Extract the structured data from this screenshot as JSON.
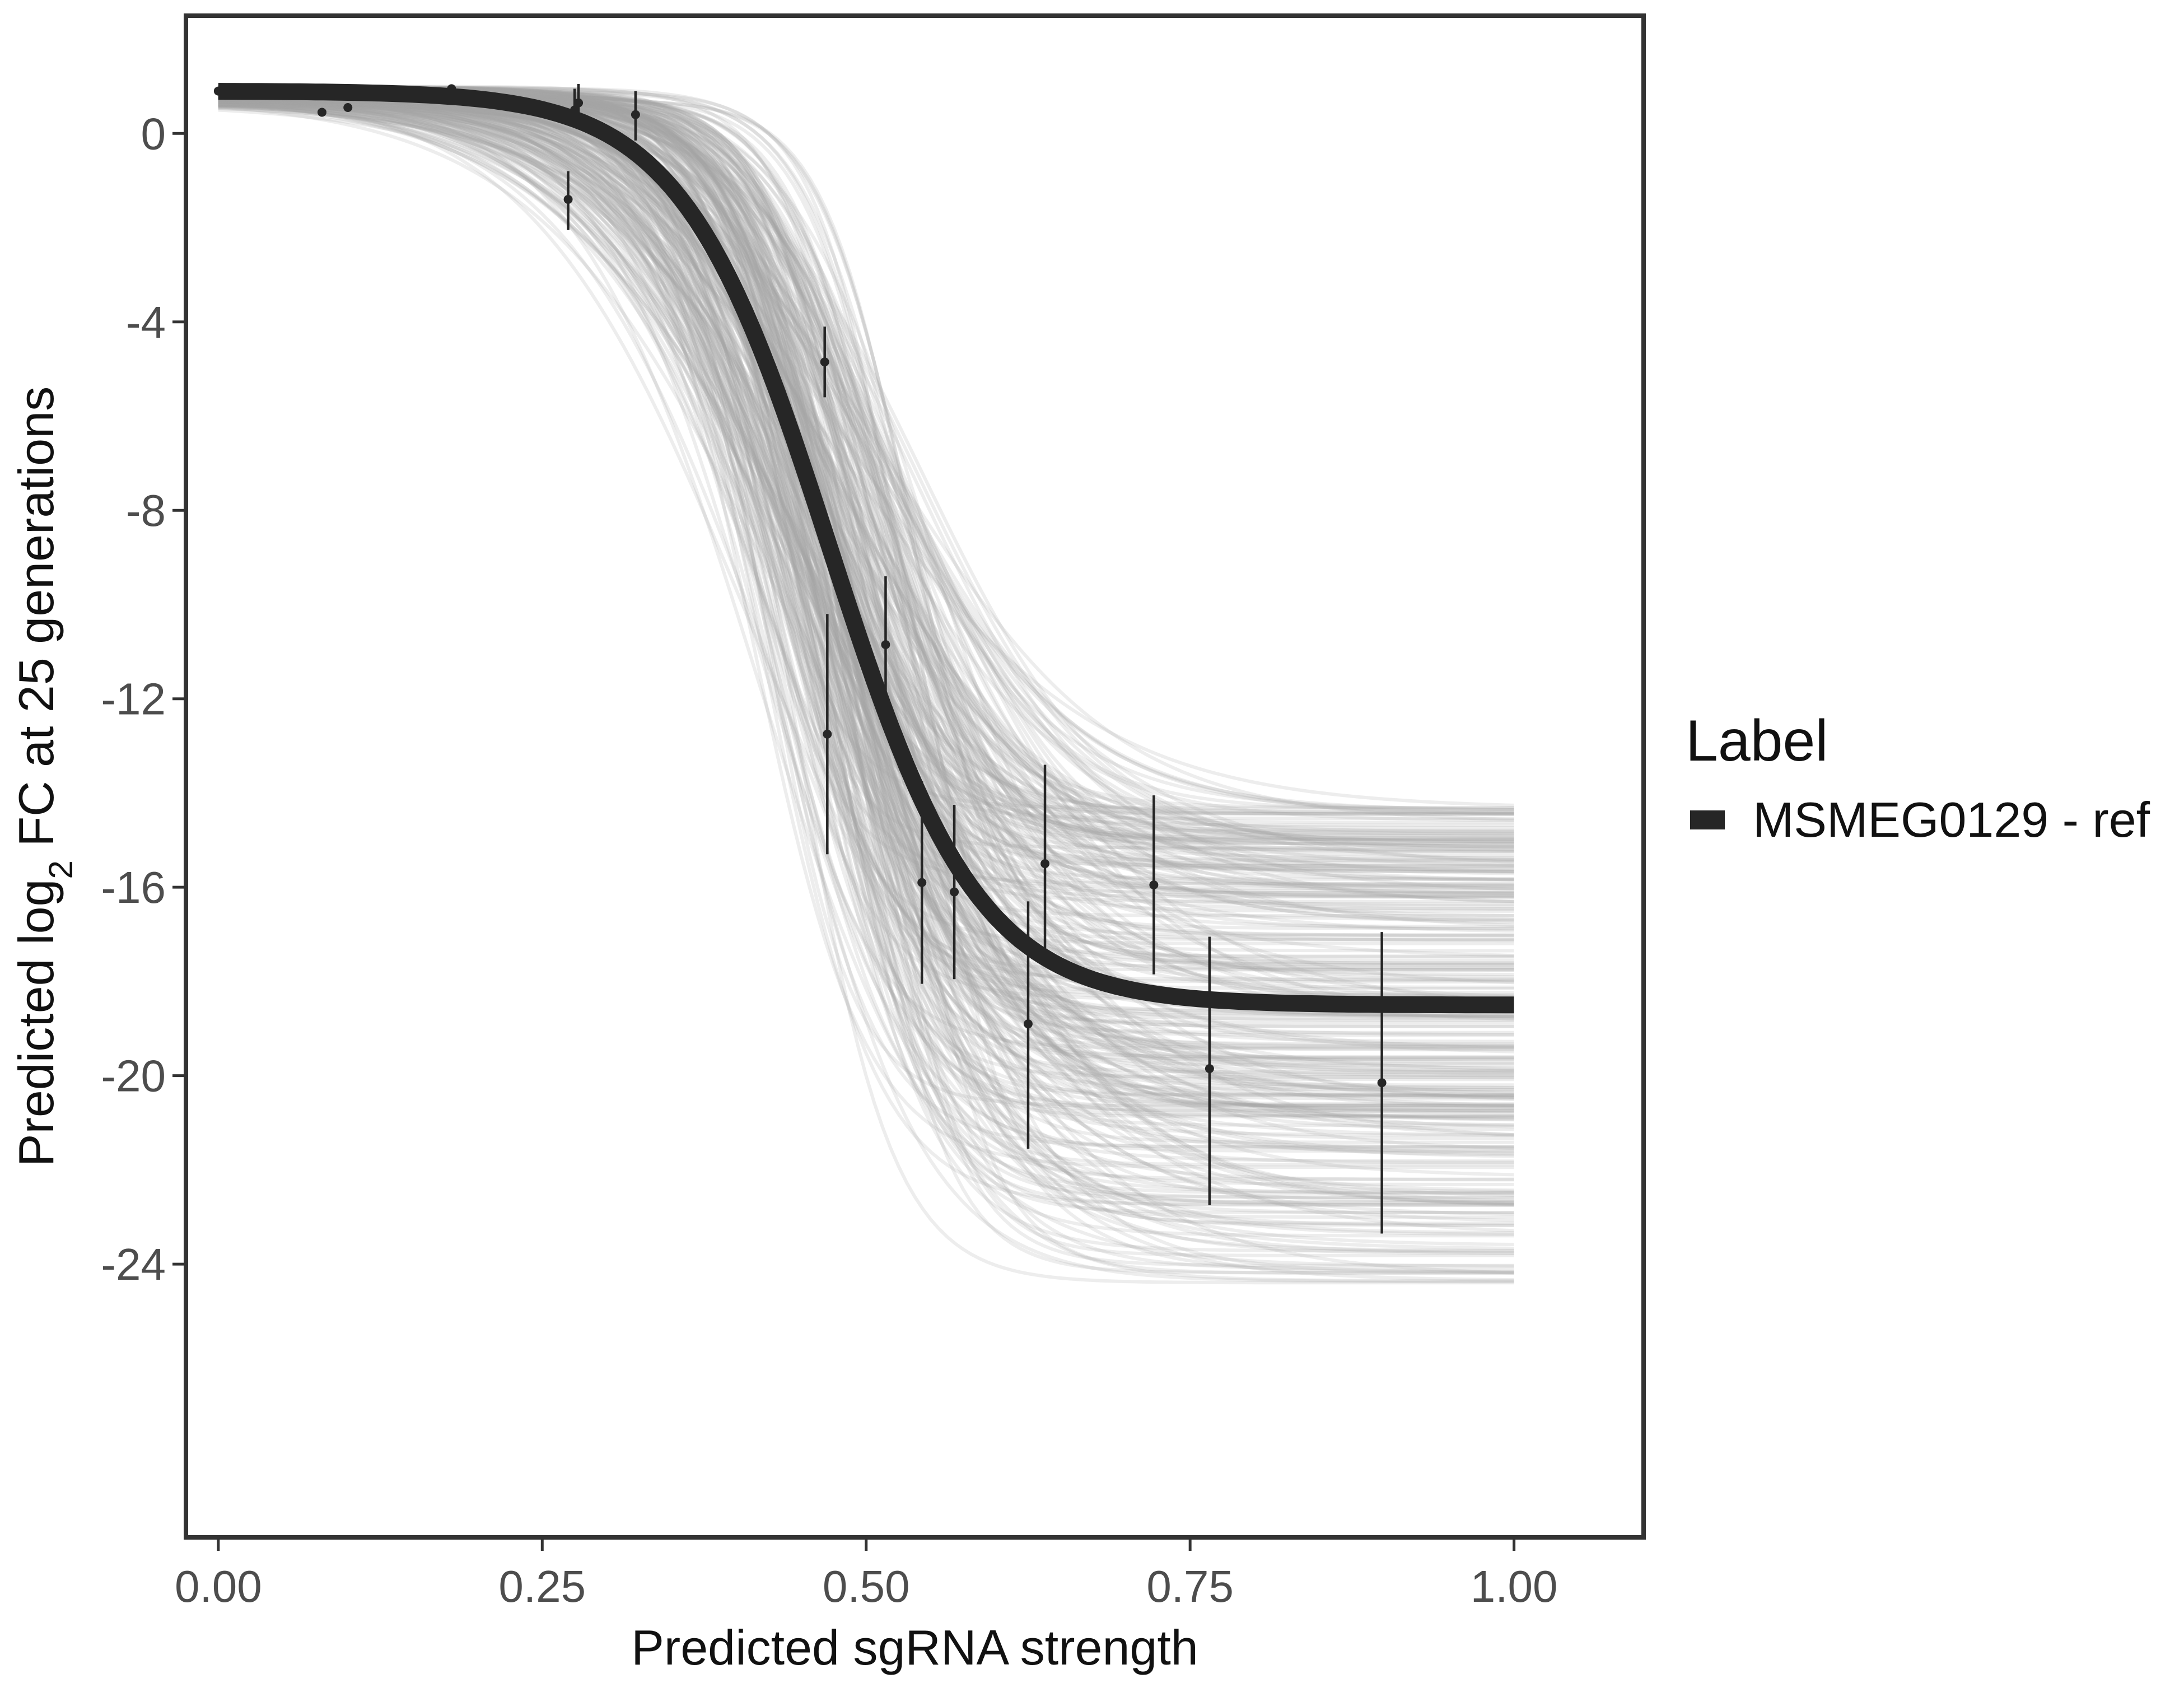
{
  "chart_data": {
    "type": "line",
    "xlabel": "Predicted sgRNA strength",
    "ylabel_parts": {
      "pre": "Predicted  log",
      "sub": "2",
      "post": " FC at 25 generations"
    },
    "xlim": [
      -0.025,
      1.1
    ],
    "ylim": [
      -29.8,
      2.5
    ],
    "x_ticks": [
      0.0,
      0.25,
      0.5,
      0.75,
      1.0
    ],
    "x_tick_labels": [
      "0.00",
      "0.25",
      "0.50",
      "0.75",
      "1.00"
    ],
    "y_ticks": [
      0,
      -4,
      -8,
      -12,
      -16,
      -20,
      -24
    ],
    "y_tick_labels": [
      "0",
      "-4",
      "-8",
      "-12",
      "-16",
      "-20",
      "-24"
    ],
    "grid": false,
    "legend": {
      "title": "Label",
      "position": "right",
      "entries": [
        {
          "name": "MSMEG0129 - ref",
          "color": "#262626"
        }
      ]
    },
    "fit_curve": {
      "name": "MSMEG0129 - ref",
      "color": "#262626",
      "model": "logistic",
      "upper": 0.9,
      "lower": -18.5,
      "midpoint": 0.472,
      "slope": 17.5
    },
    "posterior_draws": {
      "color": "#a3a3a3",
      "count": 320,
      "upper_range": [
        0.6,
        1.0
      ],
      "lower_range": [
        -24.4,
        -14.3
      ],
      "midpoint_range": [
        0.395,
        0.56
      ],
      "slope_range": [
        10.0,
        30.0
      ]
    },
    "points": [
      {
        "x": 0.0,
        "y": 0.9,
        "ymin": 0.9,
        "ymax": 0.9
      },
      {
        "x": 0.08,
        "y": 0.45,
        "ymin": 0.45,
        "ymax": 0.45
      },
      {
        "x": 0.1,
        "y": 0.55,
        "ymin": 0.55,
        "ymax": 0.55
      },
      {
        "x": 0.18,
        "y": 0.95,
        "ymin": 0.95,
        "ymax": 0.95
      },
      {
        "x": 0.27,
        "y": -1.4,
        "ymin": -2.05,
        "ymax": -0.8
      },
      {
        "x": 0.275,
        "y": 0.5,
        "ymin": 0.2,
        "ymax": 0.95
      },
      {
        "x": 0.278,
        "y": 0.65,
        "ymin": 0.3,
        "ymax": 1.05
      },
      {
        "x": 0.322,
        "y": 0.4,
        "ymin": -0.15,
        "ymax": 0.9
      },
      {
        "x": 0.468,
        "y": -4.85,
        "ymin": -5.6,
        "ymax": -4.1
      },
      {
        "x": 0.47,
        "y": -12.75,
        "ymin": -15.3,
        "ymax": -10.2
      },
      {
        "x": 0.515,
        "y": -10.85,
        "ymin": -12.4,
        "ymax": -9.4
      },
      {
        "x": 0.543,
        "y": -15.9,
        "ymin": -18.05,
        "ymax": -13.75
      },
      {
        "x": 0.568,
        "y": -16.1,
        "ymin": -17.95,
        "ymax": -14.25
      },
      {
        "x": 0.625,
        "y": -18.9,
        "ymin": -21.55,
        "ymax": -16.3
      },
      {
        "x": 0.638,
        "y": -15.5,
        "ymin": -17.55,
        "ymax": -13.4
      },
      {
        "x": 0.722,
        "y": -15.95,
        "ymin": -17.85,
        "ymax": -14.05
      },
      {
        "x": 0.765,
        "y": -19.85,
        "ymin": -22.75,
        "ymax": -17.05
      },
      {
        "x": 0.898,
        "y": -20.15,
        "ymin": -23.35,
        "ymax": -16.95
      }
    ]
  }
}
